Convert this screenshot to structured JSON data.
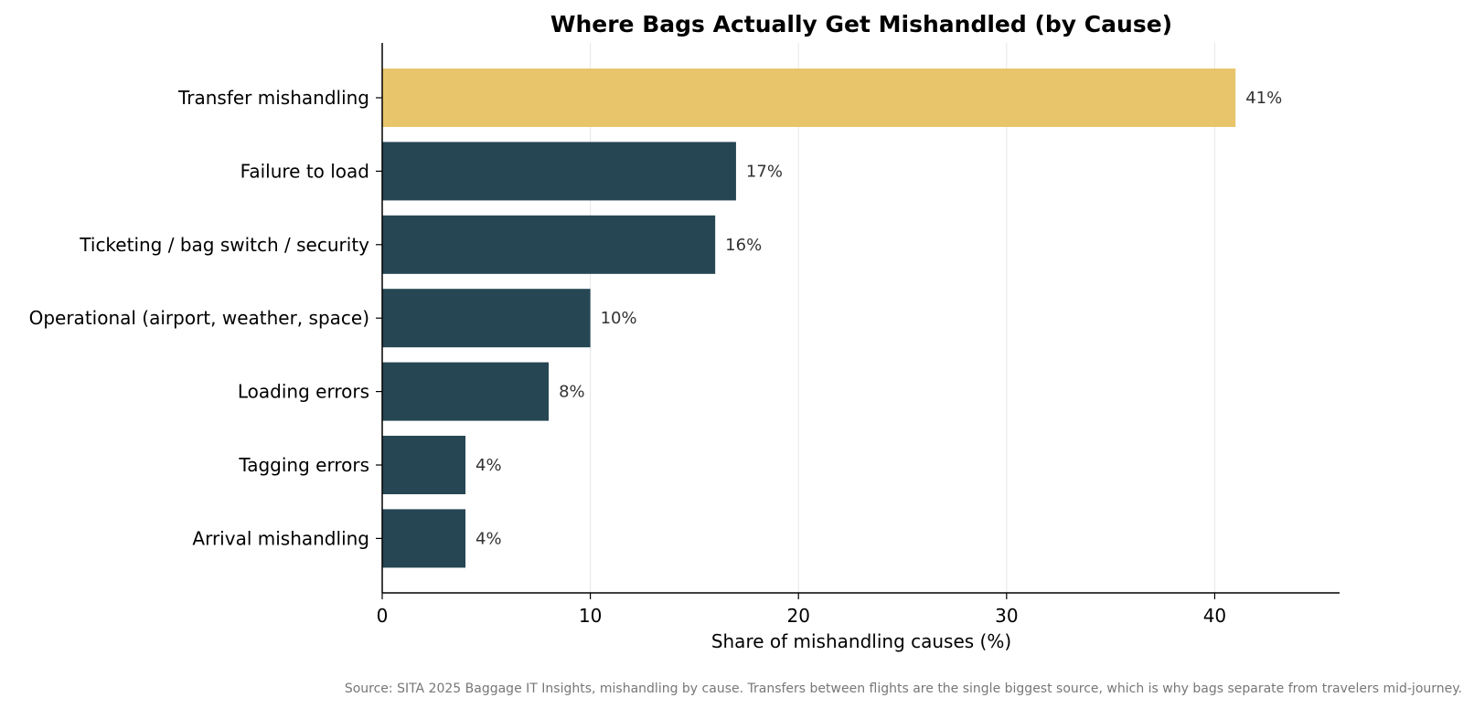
{
  "chart_data": {
    "type": "bar",
    "orientation": "horizontal",
    "title": "Where Bags Actually Get Mishandled (by Cause)",
    "xlabel": "Share of mishandling causes (%)",
    "ylabel": "",
    "xlim": [
      0,
      46
    ],
    "xticks": [
      "0",
      "10",
      "20",
      "30",
      "40"
    ],
    "xtick_values": [
      0,
      10,
      20,
      30,
      40
    ],
    "grid": "vertical",
    "categories": [
      "Transfer mishandling",
      "Failure to load",
      "Ticketing / bag switch / security",
      "Operational (airport, weather, space)",
      "Loading errors",
      "Tagging errors",
      "Arrival mishandling"
    ],
    "values": [
      41,
      17,
      16,
      10,
      8,
      4,
      4
    ],
    "data_labels": [
      "41%",
      "17%",
      "16%",
      "10%",
      "8%",
      "4%",
      "4%"
    ],
    "highlight_index": 0,
    "colors": {
      "highlight": "#e8c56b",
      "default": "#264653"
    }
  },
  "footnote": "Source: SITA 2025 Baggage IT Insights, mishandling by cause. Transfers between flights are the single biggest source, which is why bags separate from travelers mid-journey."
}
